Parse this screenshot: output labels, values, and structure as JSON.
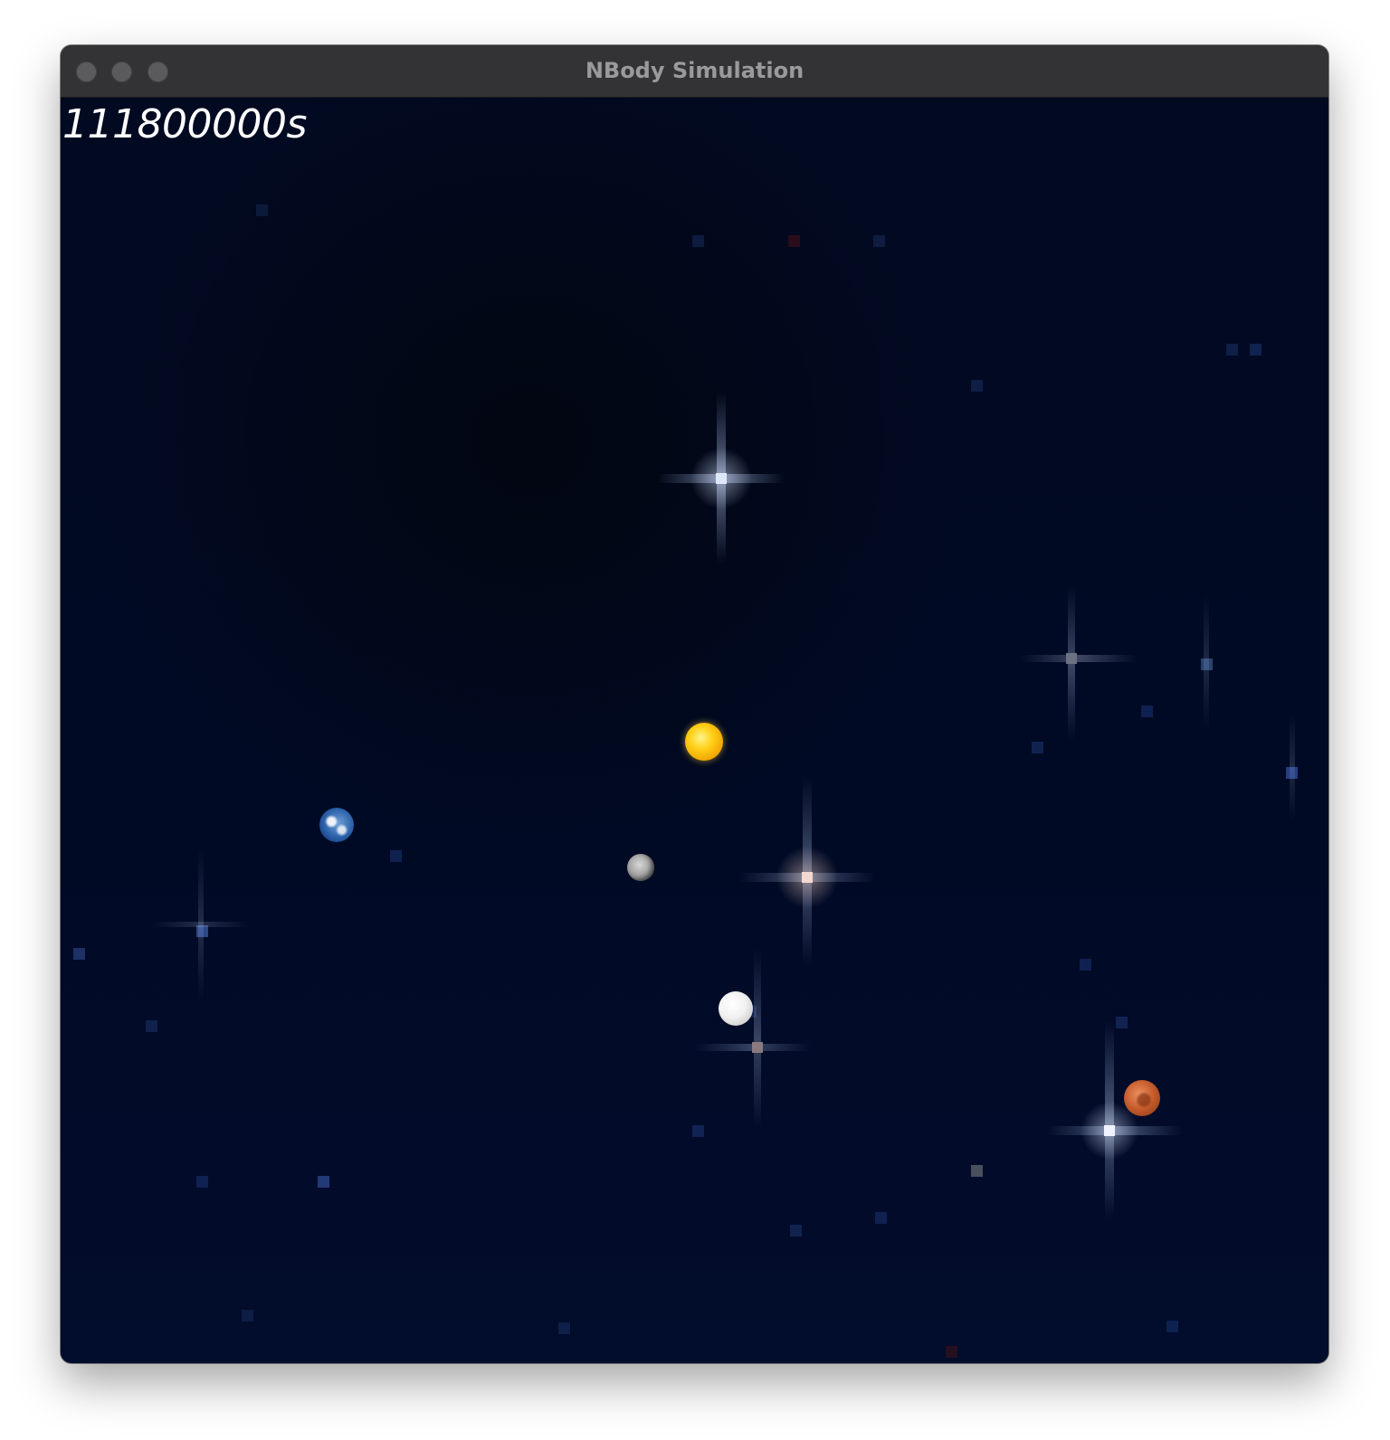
{
  "window": {
    "title": "NBody Simulation"
  },
  "simulation": {
    "elapsed_time_label": "111800000s"
  },
  "bodies": [
    {
      "name": "sun",
      "icon": "sun-icon"
    },
    {
      "name": "earth",
      "icon": "earth-icon"
    },
    {
      "name": "moon",
      "icon": "moon-icon"
    },
    {
      "name": "venus",
      "icon": "venus-icon"
    },
    {
      "name": "mars",
      "icon": "mars-icon"
    }
  ],
  "colors": {
    "background": "#010a24",
    "titlebar": "#333335",
    "time_text": "#ffffff"
  }
}
